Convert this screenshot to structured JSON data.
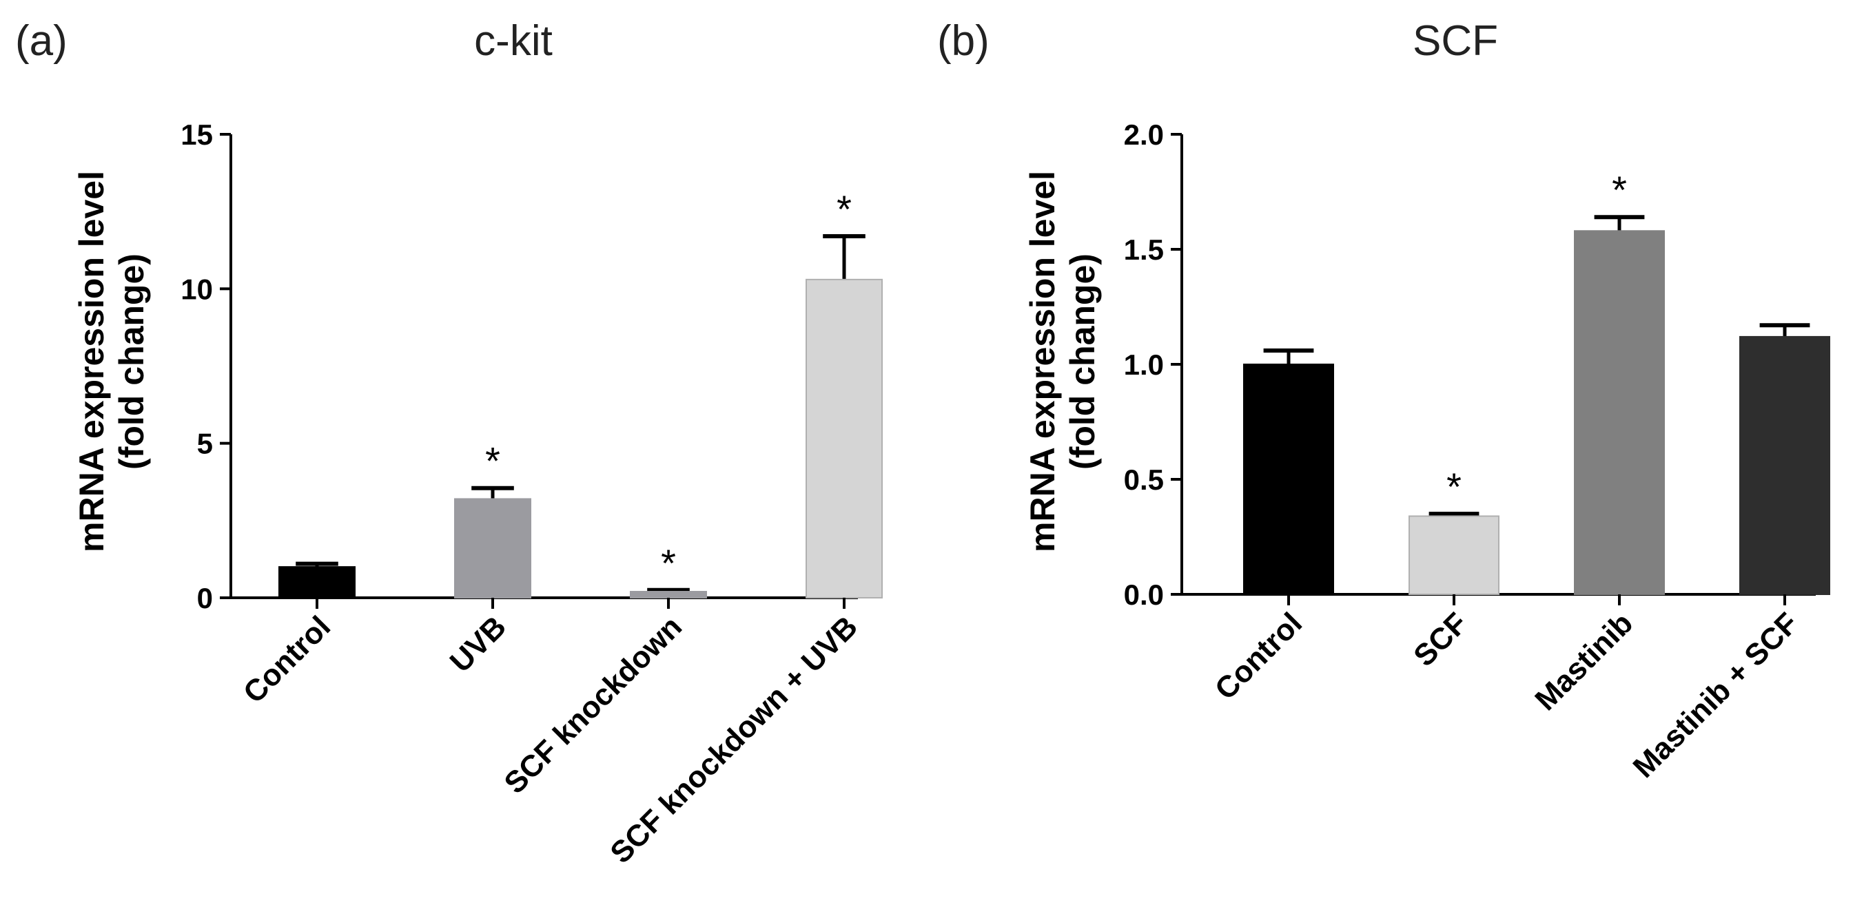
{
  "chart_data": [
    {
      "panel": "(a)",
      "title": "c-kit",
      "type": "bar",
      "ylabel_line1": "mRNA expression level",
      "ylabel_line2": "(fold change)",
      "xlabel": "",
      "ylim": [
        0,
        15
      ],
      "yticks": [
        0,
        5,
        10,
        15
      ],
      "ytick_labels": [
        "0",
        "5",
        "10",
        "15"
      ],
      "categories": [
        "Control",
        "UVB",
        "SCF knockdown",
        "SCF knockdown + UVB"
      ],
      "values": [
        1.0,
        3.2,
        0.2,
        10.3
      ],
      "errors": [
        0.1,
        0.35,
        0.05,
        1.4
      ],
      "significance": [
        "",
        "*",
        "*",
        "*"
      ],
      "colors": [
        "#000000",
        "#9b9ba0",
        "#9b9ba0",
        "#d5d5d5"
      ]
    },
    {
      "panel": "(b)",
      "title": "SCF",
      "type": "bar",
      "ylabel_line1": "mRNA expression level",
      "ylabel_line2": "(fold change)",
      "xlabel": "",
      "ylim": [
        0,
        2.0
      ],
      "yticks": [
        0,
        0.5,
        1.0,
        1.5,
        2.0
      ],
      "ytick_labels": [
        "0.0",
        "0.5",
        "1.0",
        "1.5",
        "2.0"
      ],
      "categories": [
        "Control",
        "SCF",
        "Mastinib",
        "Mastinib + SCF"
      ],
      "values": [
        1.0,
        0.34,
        1.58,
        1.12
      ],
      "errors": [
        0.06,
        0.01,
        0.06,
        0.05
      ],
      "significance": [
        "",
        "*",
        "*",
        ""
      ],
      "colors": [
        "#000000",
        "#d5d5d5",
        "#808080",
        "#2e2e2e"
      ]
    }
  ]
}
